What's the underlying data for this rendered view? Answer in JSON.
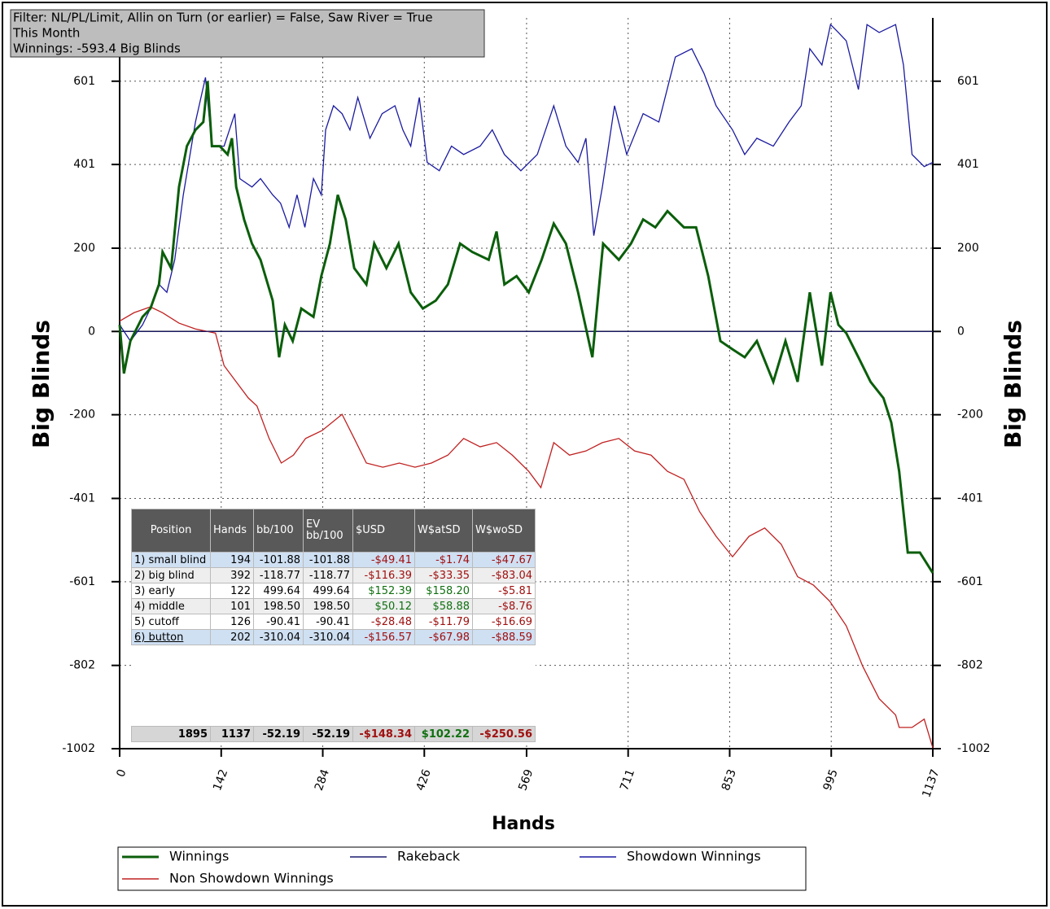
{
  "chart_data": {
    "type": "line",
    "annotations": [
      "Filter: NL/PL/Limit, Allin on Turn (or earlier) = False, Saw River = True",
      "This Month",
      "Winnings: -593.4 Big Blinds"
    ],
    "xlabel": "Hands",
    "ylabel": "Big Blinds",
    "xlim": [
      0,
      1137
    ],
    "xticks": [
      0,
      142,
      284,
      426,
      569,
      711,
      853,
      995,
      1137
    ],
    "ylim": [
      -1002,
      753
    ],
    "yticks": [
      -1002,
      -802,
      -601,
      -401,
      -200,
      0,
      200,
      401,
      601
    ],
    "grid": true,
    "series": [
      {
        "name": "Winnings",
        "color": "#0b5e0b",
        "x": [
          0,
          6,
          15,
          32,
          43,
          55,
          60,
          72,
          83,
          94,
          106,
          117,
          123,
          129,
          140,
          151,
          157,
          163,
          174,
          185,
          197,
          214,
          223,
          231,
          242,
          254,
          271,
          282,
          294,
          305,
          316,
          328,
          345,
          356,
          373,
          390,
          407,
          424,
          442,
          459,
          476,
          493,
          516,
          527,
          538,
          555,
          572,
          590,
          607,
          624,
          641,
          661,
          676,
          698,
          715,
          732,
          749,
          766,
          789,
          806,
          823,
          840,
          857,
          874,
          891,
          914,
          931,
          948,
          965,
          982,
          994,
          1005,
          1016,
          1033,
          1050,
          1068,
          1079,
          1090,
          1102,
          1119,
          1137
        ],
        "values": [
          16,
          -101,
          -23,
          35,
          55,
          113,
          191,
          152,
          347,
          445,
          484,
          503,
          601,
          445,
          445,
          425,
          464,
          347,
          269,
          211,
          172,
          74,
          -62,
          16,
          -23,
          55,
          35,
          133,
          211,
          328,
          269,
          152,
          113,
          211,
          152,
          211,
          94,
          55,
          74,
          113,
          211,
          191,
          172,
          240,
          113,
          133,
          94,
          172,
          259,
          211,
          94,
          -62,
          211,
          172,
          211,
          269,
          250,
          289,
          250,
          250,
          133,
          -23,
          -43,
          -62,
          -23,
          -121,
          -23,
          -121,
          94,
          -82,
          94,
          16,
          -4,
          -62,
          -121,
          -160,
          -219,
          -336,
          -531,
          -531,
          -580
        ]
      },
      {
        "name": "Rakeback",
        "color": "#1c1c6e",
        "x": [
          0,
          1137
        ],
        "values": [
          0,
          0
        ]
      },
      {
        "name": "Showdown Winnings",
        "color": "#1a1aa0",
        "x": [
          0,
          15,
          32,
          43,
          55,
          66,
          77,
          89,
          106,
          120,
          129,
          146,
          161,
          168,
          185,
          197,
          214,
          225,
          237,
          248,
          259,
          271,
          282,
          288,
          299,
          311,
          322,
          333,
          350,
          367,
          385,
          396,
          407,
          419,
          430,
          447,
          464,
          481,
          504,
          521,
          538,
          561,
          584,
          607,
          624,
          641,
          652,
          663,
          675,
          692,
          709,
          732,
          754,
          777,
          800,
          817,
          834,
          857,
          874,
          891,
          914,
          936,
          953,
          965,
          982,
          994,
          1005,
          1016,
          1033,
          1045,
          1062,
          1085,
          1096,
          1108,
          1125,
          1137
        ],
        "values": [
          16,
          -23,
          16,
          55,
          113,
          94,
          172,
          328,
          503,
          610,
          445,
          445,
          523,
          367,
          347,
          367,
          328,
          308,
          250,
          328,
          250,
          367,
          328,
          484,
          542,
          523,
          484,
          562,
          464,
          523,
          542,
          484,
          445,
          562,
          406,
          386,
          445,
          425,
          445,
          484,
          425,
          386,
          425,
          542,
          445,
          406,
          464,
          230,
          347,
          542,
          425,
          523,
          503,
          659,
          679,
          620,
          542,
          484,
          425,
          464,
          445,
          503,
          542,
          679,
          640,
          737,
          718,
          698,
          581,
          737,
          718,
          737,
          640,
          425,
          396,
          406
        ]
      },
      {
        "name": "Non Showdown Winnings",
        "color": "#c02020",
        "x": [
          0,
          20,
          43,
          60,
          83,
          106,
          134,
          146,
          163,
          180,
          192,
          209,
          226,
          243,
          260,
          283,
          311,
          328,
          345,
          368,
          391,
          413,
          436,
          459,
          481,
          504,
          527,
          549,
          572,
          589,
          607,
          629,
          652,
          675,
          698,
          720,
          743,
          766,
          789,
          800,
          811,
          834,
          857,
          880,
          902,
          925,
          948,
          970,
          993,
          1016,
          1039,
          1062,
          1085,
          1090,
          1108,
          1125,
          1137
        ],
        "values": [
          25,
          45,
          59,
          45,
          20,
          6,
          -4,
          -82,
          -121,
          -160,
          -179,
          -257,
          -316,
          -297,
          -257,
          -238,
          -199,
          -257,
          -316,
          -326,
          -316,
          -326,
          -316,
          -297,
          -257,
          -277,
          -267,
          -297,
          -336,
          -375,
          -267,
          -297,
          -287,
          -267,
          -257,
          -287,
          -297,
          -336,
          -355,
          -394,
          -433,
          -492,
          -541,
          -492,
          -472,
          -511,
          -589,
          -609,
          -648,
          -707,
          -804,
          -882,
          -921,
          -951,
          -951,
          -931,
          -1000
        ]
      }
    ]
  },
  "table": {
    "columns": [
      "Position",
      "Hands",
      "bb/100",
      "EV bb/100",
      "$USD",
      "W$atSD",
      "W$woSD"
    ],
    "rows": [
      [
        "1) small blind",
        "194",
        "-101.88",
        "-101.88",
        "-$49.41",
        "-$1.74",
        "-$47.67"
      ],
      [
        "2) big blind",
        "392",
        "-118.77",
        "-118.77",
        "-$116.39",
        "-$33.35",
        "-$83.04"
      ],
      [
        "3) early",
        "122",
        "499.64",
        "499.64",
        "$152.39",
        "$158.20",
        "-$5.81"
      ],
      [
        "4) middle",
        "101",
        "198.50",
        "198.50",
        "$50.12",
        "$58.88",
        "-$8.76"
      ],
      [
        "5) cutoff",
        "126",
        "-90.41",
        "-90.41",
        "-$28.48",
        "-$11.79",
        "-$16.69"
      ],
      [
        "6) button",
        "202",
        "-310.04",
        "-310.04",
        "-$156.57",
        "-$67.98",
        "-$88.59"
      ]
    ],
    "totals": [
      "1895",
      "1137",
      "-52.19",
      "-52.19",
      "-$148.34",
      "$102.22",
      "-$250.56"
    ]
  }
}
